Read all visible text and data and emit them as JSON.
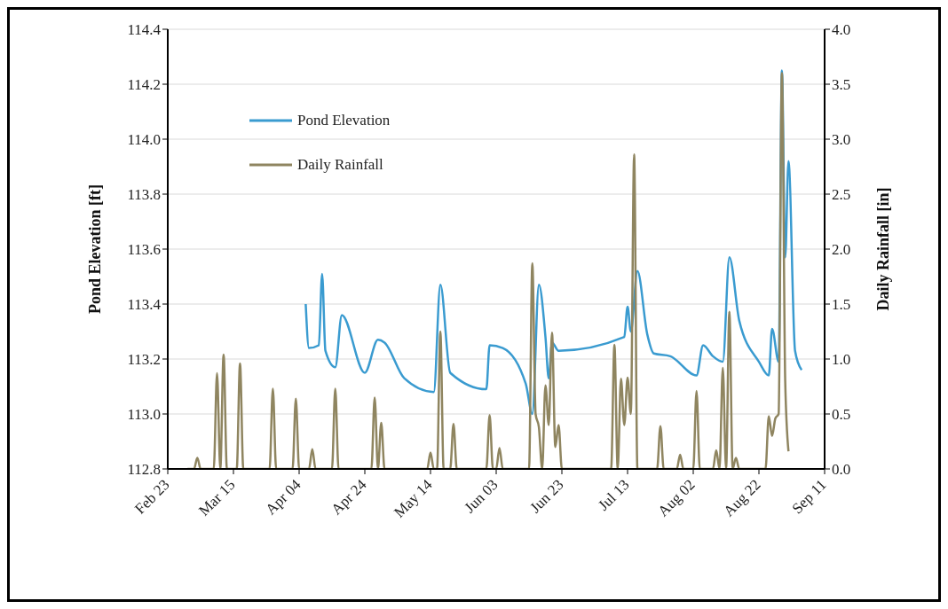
{
  "chart_data": {
    "type": "line",
    "xlabel": null,
    "ylabel": "Pond Elevation [ft]",
    "y2label": "Daily Rainfall [in]",
    "xlim": [
      "--02-23",
      "--09-11"
    ],
    "xticks": [
      {
        "value": "--02-23",
        "label": "Feb 23"
      },
      {
        "value": "--03-15",
        "label": "Mar 15"
      },
      {
        "value": "--04-04",
        "label": "Apr 04"
      },
      {
        "value": "--04-24",
        "label": "Apr 24"
      },
      {
        "value": "--05-14",
        "label": "May 14"
      },
      {
        "value": "--06-03",
        "label": "Jun 03"
      },
      {
        "value": "--06-23",
        "label": "Jun 23"
      },
      {
        "value": "--07-13",
        "label": "Jul 13"
      },
      {
        "value": "--08-02",
        "label": "Aug 02"
      },
      {
        "value": "--08-22",
        "label": "Aug 22"
      },
      {
        "value": "--09-11",
        "label": "Sep 11"
      }
    ],
    "ylim": [
      112.8,
      114.4
    ],
    "yticks": [
      112.8,
      {
        "value": 113,
        "label": "113.0"
      },
      113.2,
      113.4,
      113.6,
      113.8,
      {
        "value": 114,
        "label": "114.0"
      },
      114.2,
      114.4
    ],
    "y2lim": [
      0,
      4
    ],
    "y2ticks": [
      {
        "value": 0,
        "label": "0.0"
      },
      0.5,
      {
        "value": 1,
        "label": "1.0"
      },
      1.5,
      {
        "value": 2,
        "label": "2.0"
      },
      2.5,
      {
        "value": 3,
        "label": "3.0"
      },
      3.5,
      {
        "value": 4,
        "label": "4.0"
      }
    ],
    "grid": "y",
    "legend": "top left",
    "marker": "none",
    "series": [
      {
        "name": "Pond Elevation",
        "color": "#3a9bd0",
        "x": [
          "--04-06",
          "--04-07",
          "--04-10",
          "--04-11",
          "--04-12",
          "--04-15",
          "--04-17",
          "--04-24",
          "--04-28",
          "--04-30",
          "--05-06",
          "--05-15",
          "--05-17",
          "--05-20",
          "--05-31",
          "--06-01",
          "--06-05",
          "--06-12",
          "--06-14",
          "--06-16",
          "--06-18",
          "--06-19",
          "--06-20",
          "--06-22",
          "--07-12",
          "--07-13",
          "--07-14",
          "--07-16",
          "--07-19",
          "--07-21",
          "--07-26",
          "--08-03",
          "--08-05",
          "--08-08",
          "--08-11",
          "--08-13",
          "--08-16",
          "--08-22",
          "--08-25",
          "--08-26",
          "--08-28",
          "--08-29",
          "--08-30",
          "--08-31",
          "--09-02",
          "--09-04"
        ],
        "values": [
          113.4,
          113.24,
          113.25,
          113.51,
          113.23,
          113.17,
          113.36,
          113.15,
          113.27,
          113.26,
          113.13,
          113.08,
          113.47,
          113.15,
          113.09,
          113.25,
          113.24,
          113.11,
          113.0,
          113.47,
          113.28,
          113.13,
          113.26,
          113.23,
          113.28,
          113.39,
          113.3,
          113.52,
          113.29,
          113.22,
          113.21,
          113.14,
          113.25,
          113.21,
          113.19,
          113.57,
          113.34,
          113.19,
          113.14,
          113.31,
          113.19,
          114.25,
          113.57,
          113.92,
          113.23,
          113.16
        ]
      },
      {
        "name": "Daily Rainfall",
        "color": "#8f8560",
        "axis": "y2",
        "x": [
          "--03-01",
          "--03-03",
          "--03-04",
          "--03-05",
          "--03-09",
          "--03-10",
          "--03-11",
          "--03-12",
          "--03-13",
          "--03-16",
          "--03-17",
          "--03-18",
          "--03-26",
          "--03-27",
          "--03-28",
          "--04-02",
          "--04-03",
          "--04-04",
          "--04-07",
          "--04-08",
          "--04-09",
          "--04-14",
          "--04-15",
          "--04-16",
          "--04-26",
          "--04-27",
          "--04-28",
          "--04-29",
          "--04-30",
          "--05-13",
          "--05-14",
          "--05-15",
          "--05-16",
          "--05-17",
          "--05-18",
          "--05-20",
          "--05-21",
          "--05-22",
          "--05-31",
          "--06-01",
          "--06-02",
          "--06-03",
          "--06-04",
          "--06-05",
          "--06-13",
          "--06-14",
          "--06-15",
          "--06-16",
          "--06-17",
          "--06-18",
          "--06-19",
          "--06-20",
          "--06-21",
          "--06-22",
          "--06-23",
          "--07-08",
          "--07-09",
          "--07-10",
          "--07-11",
          "--07-12",
          "--07-13",
          "--07-14",
          "--07-15",
          "--07-16",
          "--07-22",
          "--07-23",
          "--07-24",
          "--07-28",
          "--07-29",
          "--07-30",
          "--08-02",
          "--08-03",
          "--08-04",
          "--08-08",
          "--08-09",
          "--08-10",
          "--08-11",
          "--08-12",
          "--08-13",
          "--08-14",
          "--08-15",
          "--08-16",
          "--08-24",
          "--08-25",
          "--08-26",
          "--08-27",
          "--08-28",
          "--08-29",
          "--08-30",
          "--08-31"
        ],
        "values": [
          0,
          0,
          0.1,
          0,
          0,
          0.87,
          0,
          1.04,
          0,
          0,
          0.96,
          0,
          0,
          0.73,
          0,
          0,
          0.64,
          0,
          0,
          0.18,
          0,
          0,
          0.73,
          0,
          0,
          0.65,
          0,
          0.42,
          0,
          0,
          0.15,
          0,
          0,
          1.25,
          0,
          0,
          0.41,
          0,
          0,
          0.49,
          0,
          0,
          0.19,
          0,
          0,
          1.87,
          0.5,
          0.38,
          0,
          0.76,
          0.4,
          1.24,
          0.2,
          0.4,
          0,
          0,
          1.13,
          0,
          0.82,
          0.4,
          0.83,
          0.5,
          2.86,
          0,
          0,
          0.39,
          0,
          0,
          0.13,
          0,
          0,
          0.71,
          0,
          0,
          0.17,
          0,
          0.92,
          0,
          1.43,
          0,
          0.1,
          0,
          0,
          0.48,
          0.3,
          0.46,
          0.5,
          3.6,
          0.8,
          0.16
        ]
      }
    ]
  }
}
